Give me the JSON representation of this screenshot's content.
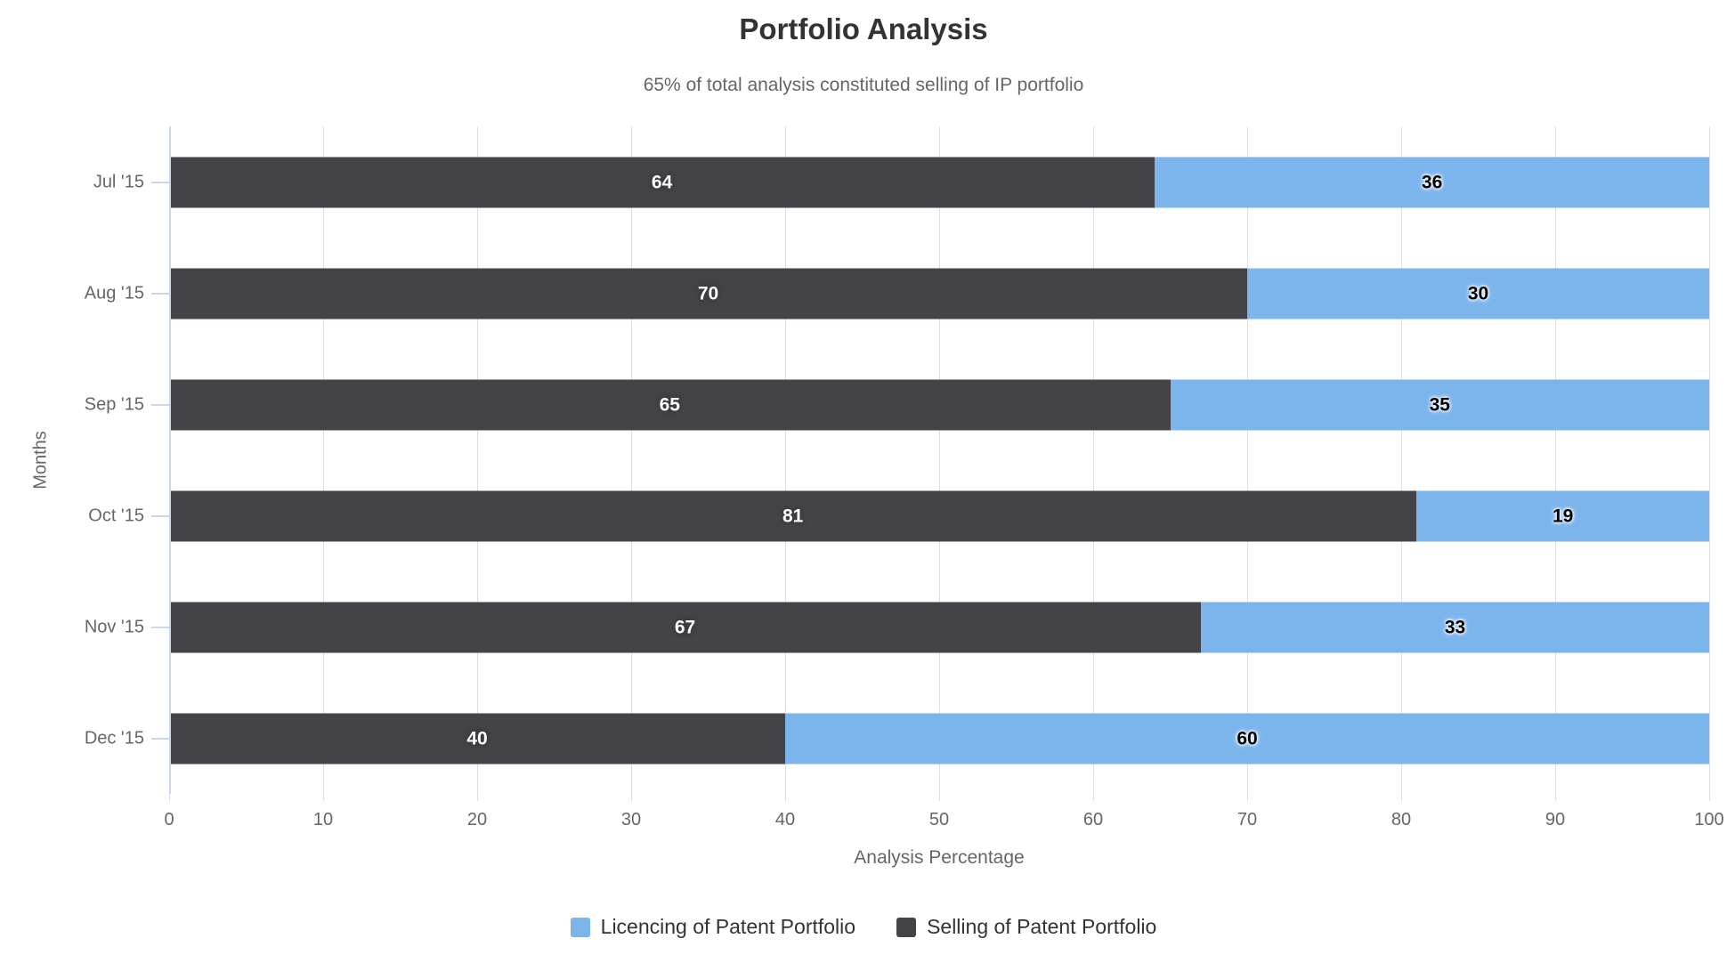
{
  "chart_data": {
    "type": "bar",
    "orientation": "horizontal",
    "stacked": true,
    "title": "Portfolio Analysis",
    "subtitle": "65% of total analysis constituted selling of IP portfolio",
    "categories": [
      "Jul '15",
      "Aug '15",
      "Sep '15",
      "Oct '15",
      "Nov '15",
      "Dec '15"
    ],
    "series": [
      {
        "name": "Selling of Patent Portfolio",
        "color": "#434348",
        "label_color": "#ffffff",
        "label_glow": "#3a3a3f",
        "values": [
          64,
          70,
          65,
          81,
          67,
          40
        ]
      },
      {
        "name": "Licencing of Patent Portfolio",
        "color": "#7cb5ec",
        "label_color": "#000000",
        "label_glow": "#ffffff",
        "values": [
          36,
          30,
          35,
          19,
          33,
          60
        ]
      }
    ],
    "xlabel": "Analysis Percentage",
    "ylabel": "Months",
    "xlim": [
      0,
      100
    ],
    "x_ticks": [
      0,
      10,
      20,
      30,
      40,
      50,
      60,
      70,
      80,
      90,
      100
    ],
    "grid": true,
    "legend_position": "bottom"
  },
  "legend": {
    "items": [
      {
        "label": "Licencing of Patent Portfolio",
        "color": "#7cb5ec"
      },
      {
        "label": "Selling of Patent Portfolio",
        "color": "#434348"
      }
    ]
  },
  "colors": {
    "background": "#ffffff",
    "axis_line": "#ccd6eb",
    "tick": "#ccd6eb",
    "grid_line": "#dedede",
    "title_text": "#333333",
    "muted_text": "#666666",
    "legend_text": "#333333"
  }
}
